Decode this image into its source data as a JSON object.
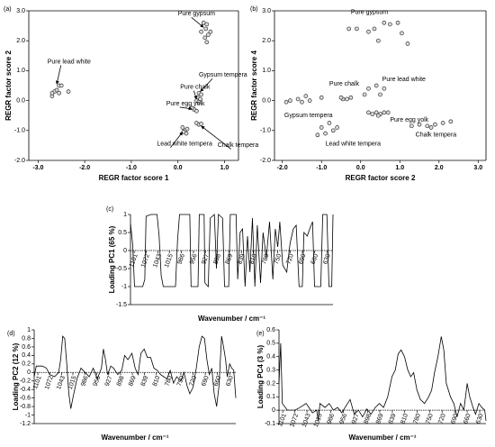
{
  "chart_data": [
    {
      "type": "scatter",
      "label": "(a)",
      "xlabel": "REGR factor score 1",
      "ylabel": "REGR factor score 2",
      "xlim": [
        -3.2,
        1.3
      ],
      "xticks": [
        {
          "value": -3,
          "label": "-3.0"
        },
        {
          "value": -2,
          "label": "-2.0"
        },
        {
          "value": -1,
          "label": "-1.0"
        },
        {
          "value": 0,
          "label": "0.0"
        },
        {
          "value": 1,
          "label": "1.0"
        }
      ],
      "ylim": [
        -2,
        3
      ],
      "yticks": [
        {
          "value": 3,
          "label": "3.0"
        },
        {
          "value": 2,
          "label": "2.0"
        },
        {
          "value": 1,
          "label": "1.0"
        },
        {
          "value": 0,
          "label": "0.0"
        },
        {
          "value": -1,
          "label": "-1.0"
        },
        {
          "value": -2,
          "label": "-2.0"
        }
      ],
      "annotations": [
        "Pure lead white",
        "Pure gypsum",
        "Gypsum tempera",
        "Pure chalk",
        "Pure egg yolk",
        "Lead white tempera",
        "Chalk tempera"
      ],
      "x": [
        -2.7,
        -2.65,
        -2.6,
        -2.55,
        -2.5,
        -2.55,
        -2.35,
        -2.7,
        0.55,
        0.62,
        0.6,
        0.5,
        0.65,
        0.58,
        0.62,
        0.7,
        0.45,
        0.5,
        0.42,
        0.48,
        0.4,
        0.45,
        0.35,
        0.4,
        0.3,
        0.1,
        0.15,
        0.2,
        0.12,
        0.18,
        0.4,
        0.45,
        0.5
      ],
      "y": [
        0.15,
        0.3,
        0.35,
        0.5,
        0.5,
        0.25,
        0.3,
        0.25,
        2.6,
        2.55,
        2.4,
        2.3,
        2.2,
        2.1,
        1.95,
        2.3,
        0.25,
        0.2,
        0.1,
        0.05,
        0,
        -0.05,
        -0.3,
        -0.35,
        -0.25,
        -0.9,
        -1,
        -0.95,
        -1.05,
        -1.1,
        -0.75,
        -0.8,
        -0.78
      ]
    },
    {
      "type": "scatter",
      "label": "(b)",
      "xlabel": "REGR factor score 2",
      "ylabel": "REGR factor score 4",
      "xlim": [
        -2.2,
        3.2
      ],
      "xticks": [
        {
          "value": -2,
          "label": "-2.0"
        },
        {
          "value": -1,
          "label": "-1.0"
        },
        {
          "value": 0,
          "label": "0.0"
        },
        {
          "value": 1,
          "label": "1.0"
        },
        {
          "value": 2,
          "label": "2.0"
        },
        {
          "value": 3,
          "label": "3.0"
        }
      ],
      "ylim": [
        -2,
        3
      ],
      "yticks": [
        {
          "value": 3,
          "label": "3.0"
        },
        {
          "value": 2,
          "label": "2.0"
        },
        {
          "value": 1,
          "label": "1.0"
        },
        {
          "value": 0,
          "label": "0.0"
        },
        {
          "value": -1,
          "label": "-1.0"
        },
        {
          "value": -2,
          "label": "-2.0"
        }
      ],
      "annotations": [
        "Pure gypsum",
        "Pure chalk",
        "Pure lead white",
        "Gypsum tempera",
        "Lead white tempera",
        "Pure egg yolk",
        "Chalk tempera"
      ],
      "x": [
        -0.3,
        -0.1,
        0.2,
        0.35,
        0.6,
        0.75,
        0.95,
        1.05,
        1.2,
        0.45,
        0.1,
        0.2,
        0.4,
        0.6,
        0.5,
        -0.45,
        -0.35,
        -0.25,
        -0.5,
        -1.9,
        -1.8,
        -1.6,
        -1.5,
        -1.3,
        -1,
        -1.4,
        -1,
        -0.9,
        -0.7,
        -0.6,
        -1.1,
        -0.8,
        0.2,
        0.3,
        0.4,
        0.5,
        0.6,
        0.7,
        0.45,
        1.3,
        1.5,
        1.7,
        1.9,
        2.1,
        2.3,
        1.8
      ],
      "y": [
        2.4,
        2.4,
        2.3,
        2.4,
        2.6,
        2.55,
        2.6,
        2.25,
        1.9,
        2,
        0.2,
        0.4,
        0.5,
        0.4,
        0.2,
        0.05,
        0.05,
        0.1,
        0.1,
        -0.05,
        0,
        0.05,
        -0.05,
        0,
        0.1,
        0.15,
        -0.9,
        -1.1,
        -1,
        -0.9,
        -1.15,
        -0.75,
        -0.4,
        -0.45,
        -0.4,
        -0.45,
        -0.4,
        -0.4,
        -0.5,
        -0.85,
        -0.8,
        -0.85,
        -0.8,
        -0.75,
        -0.7,
        -0.9
      ]
    },
    {
      "type": "line",
      "label": "(c)",
      "xlabel": "Wavenumber / cm⁻¹",
      "ylabel": "Loading PC1 (65 %)",
      "xlim": [
        1110,
        615
      ],
      "xticks": [
        1101,
        1072,
        1043,
        1015,
        986,
        956,
        927,
        898,
        869,
        839,
        810,
        780,
        750,
        720,
        690,
        660,
        630
      ],
      "ylim": [
        -1.5,
        1
      ],
      "yticks": [
        1,
        0.5,
        0,
        -0.5,
        -1,
        -1.5
      ],
      "x": [
        1110,
        1105,
        1100,
        1080,
        1075,
        1072,
        1060,
        1045,
        1040,
        1035,
        1030,
        1000,
        995,
        990,
        965,
        962,
        945,
        942,
        930,
        928,
        920,
        915,
        905,
        900,
        895,
        885,
        880,
        870,
        866,
        852,
        848,
        842,
        836,
        830,
        824,
        818,
        812,
        806,
        800,
        792,
        786,
        778,
        770,
        762,
        756,
        750,
        745,
        738,
        728,
        720,
        712,
        705,
        698,
        690,
        686,
        678,
        672,
        665,
        660,
        645,
        640,
        630,
        625,
        618,
        615
      ],
      "values": [
        0.75,
        0.2,
        -1,
        -1,
        -0.8,
        0.95,
        1,
        1,
        0.4,
        -0.7,
        -1,
        -1,
        0.3,
        1,
        1,
        -1,
        -1,
        1,
        1,
        -0.9,
        -1,
        0.9,
        1,
        -0.5,
        1,
        0.9,
        -1,
        -1,
        1,
        1,
        -0.8,
        0.5,
        0.6,
        -1,
        0.4,
        -0.6,
        0.9,
        -1,
        0.7,
        -0.9,
        0.5,
        -0.2,
        0.8,
        -0.8,
        0.6,
        0.1,
        0.8,
        -0.4,
        -0.6,
        0.2,
        0.6,
        0.7,
        -1,
        -1,
        0.5,
        0.4,
        0.6,
        0.8,
        -1,
        -1,
        1,
        1,
        -1,
        -1,
        1
      ]
    },
    {
      "type": "line",
      "label": "(d)",
      "xlabel": "Wavenumber / cm⁻¹",
      "ylabel": "Loading PC2 (12 %)",
      "xlim": [
        1110,
        615
      ],
      "xticks": [
        1101,
        1072,
        1043,
        1015,
        986,
        956,
        927,
        898,
        869,
        839,
        810,
        780,
        750,
        720,
        690,
        660,
        630
      ],
      "ylim": [
        -1.2,
        1
      ],
      "yticks": [
        1,
        0.8,
        0.6,
        0.4,
        0.2,
        0,
        -0.2,
        -0.4,
        -0.6,
        -0.8,
        -1,
        -1.2
      ],
      "x": [
        1110,
        1105,
        1090,
        1080,
        1072,
        1060,
        1050,
        1045,
        1040,
        1035,
        1030,
        1025,
        1020,
        1015,
        1005,
        995,
        985,
        975,
        965,
        955,
        945,
        940,
        935,
        930,
        922,
        915,
        905,
        895,
        888,
        880,
        870,
        862,
        855,
        848,
        840,
        832,
        824,
        816,
        808,
        800,
        792,
        784,
        776,
        768,
        760,
        750,
        742,
        735,
        728,
        720,
        712,
        705,
        698,
        692,
        686,
        680,
        674,
        668,
        662,
        656,
        650,
        645,
        640,
        636,
        630,
        625,
        620,
        615
      ],
      "values": [
        -0.1,
        0.15,
        0.15,
        0.1,
        -0.05,
        -0.1,
        0,
        0.3,
        0.85,
        0.8,
        0.2,
        -0.5,
        -0.85,
        -0.6,
        -0.15,
        0.1,
        0,
        -0.1,
        0.1,
        -0.15,
        0.1,
        0.55,
        0.3,
        -0.05,
        0.15,
        0.1,
        -0.05,
        0.05,
        0.4,
        0.3,
        0.45,
        0.1,
        -0.05,
        0.45,
        0.55,
        0.35,
        0.35,
        0.1,
        0.05,
        -0.05,
        -0.1,
        -0.15,
        0.05,
        -0.25,
        -0.1,
        -0.2,
        0,
        -0.3,
        -0.5,
        -0.35,
        0.1,
        0.6,
        0.85,
        0.8,
        0.3,
        -0.05,
        0.1,
        -0.5,
        -0.8,
        -0.3,
        0.85,
        0.6,
        0.3,
        -0.1,
        0.2,
        0.1,
        0.05,
        -0.6
      ]
    },
    {
      "type": "line",
      "label": "(e)",
      "xlabel": "Wavenumber / cm⁻¹",
      "ylabel": "Loading PC4 (3 %)",
      "xlim": [
        1110,
        615
      ],
      "xticks": [
        1101,
        1072,
        1043,
        1015,
        986,
        956,
        927,
        898,
        869,
        839,
        810,
        780,
        750,
        720,
        690,
        660,
        630
      ],
      "ylim": [
        -0.1,
        0.6
      ],
      "yticks": [
        0.6,
        0.5,
        0.4,
        0.3,
        0.2,
        0.1,
        0,
        -0.1
      ],
      "x": [
        1110,
        1106,
        1102,
        1090,
        1072,
        1060,
        1045,
        1030,
        1020,
        1016,
        1012,
        1000,
        990,
        980,
        970,
        960,
        950,
        940,
        930,
        920,
        910,
        900,
        890,
        880,
        870,
        860,
        850,
        840,
        832,
        825,
        818,
        810,
        802,
        795,
        788,
        780,
        772,
        762,
        752,
        745,
        738,
        730,
        722,
        716,
        710,
        700,
        692,
        684,
        676,
        668,
        660,
        654,
        646,
        640,
        632,
        625,
        618,
        615
      ],
      "values": [
        0.2,
        0.5,
        0.05,
        0,
        0,
        0.02,
        0.05,
        -0.02,
        0,
        -0.08,
        0.05,
        0.02,
        0.05,
        0,
        0.02,
        -0.02,
        0.03,
        0.08,
        -0.03,
        0,
        -0.05,
        0.01,
        -0.03,
        0.02,
        0.05,
        0.02,
        0.1,
        0.25,
        0.3,
        0.42,
        0.45,
        0.4,
        0.3,
        0.25,
        0.28,
        0.15,
        0.08,
        0.05,
        0.1,
        0.15,
        0.28,
        0.4,
        0.55,
        0.45,
        0.2,
        0.1,
        0.05,
        -0.05,
        0.05,
        0,
        0.2,
        0.1,
        0.02,
        -0.03,
        0.05,
        0.02,
        0,
        -0.08
      ]
    }
  ]
}
